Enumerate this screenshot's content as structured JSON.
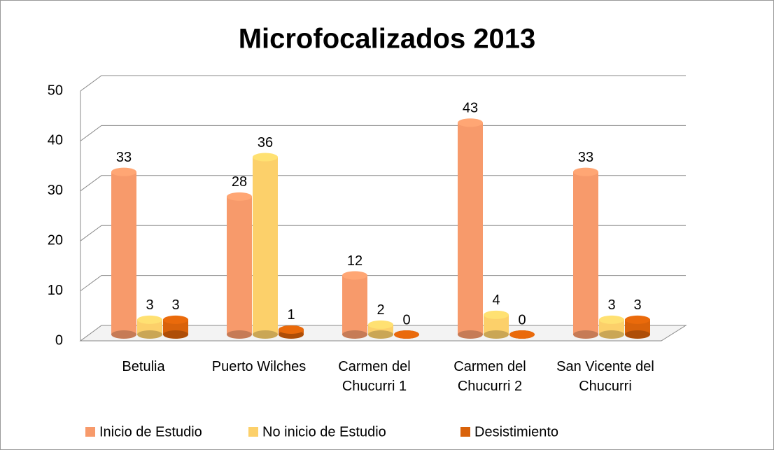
{
  "chart_data": {
    "type": "bar",
    "title": "Microfocalizados 2013",
    "categories": [
      "Betulia",
      "Puerto Wilches",
      "Carmen del Chucurri 1",
      "Carmen del Chucurri 2",
      "San Vicente del Chucurri"
    ],
    "series": [
      {
        "name": "Inicio de Estudio",
        "color": "#f79a6b",
        "values": [
          33,
          28,
          12,
          43,
          33
        ]
      },
      {
        "name": "No inicio de Estudio",
        "color": "#fcd06a",
        "values": [
          3,
          36,
          2,
          4,
          3
        ]
      },
      {
        "name": "Desistimiento",
        "color": "#d9620a",
        "values": [
          3,
          1,
          0,
          0,
          3
        ]
      }
    ],
    "ylim": [
      0,
      50
    ],
    "yticks": [
      0,
      10,
      20,
      30,
      40,
      50
    ],
    "grid": true,
    "legend": "bottom"
  }
}
